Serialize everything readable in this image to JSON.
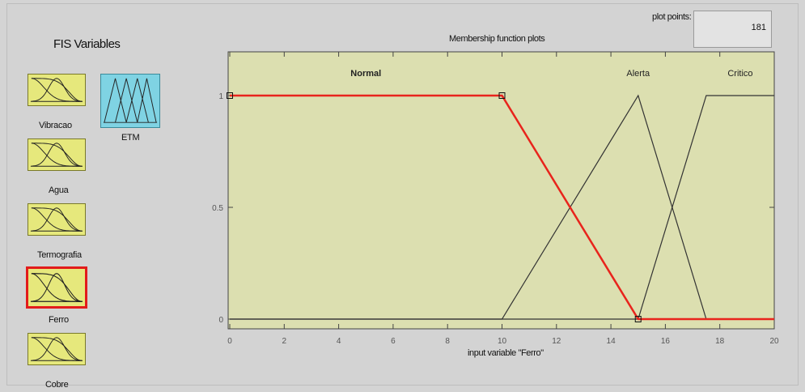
{
  "fis_panel": {
    "title": "FIS Variables",
    "inputs": [
      {
        "label": "Vibracao",
        "selected": false
      },
      {
        "label": "Agua",
        "selected": false
      },
      {
        "label": "Termografia",
        "selected": false
      },
      {
        "label": "Ferro",
        "selected": true
      },
      {
        "label": "Cobre",
        "selected": false
      }
    ],
    "output": {
      "label": "ETM"
    }
  },
  "plot_points": {
    "label": "plot points:",
    "value": "181"
  },
  "plot": {
    "title": "Membership function plots",
    "xlabel": "input variable \"Ferro\"",
    "x_range": [
      0,
      20
    ],
    "y_range": [
      0,
      1
    ],
    "x_ticks": [
      "0",
      "2",
      "4",
      "6",
      "8",
      "10",
      "12",
      "14",
      "16",
      "18",
      "20"
    ],
    "y_ticks": [
      "0",
      "0.5",
      "1"
    ],
    "membership_functions": [
      {
        "name": "Normal",
        "type": "trapmf",
        "points": [
          [
            0,
            1
          ],
          [
            10,
            1
          ],
          [
            15,
            0
          ],
          [
            20,
            0
          ]
        ],
        "selected": true,
        "color": "#e8241c"
      },
      {
        "name": "Alerta",
        "type": "trimf",
        "points": [
          [
            0,
            0
          ],
          [
            10,
            0
          ],
          [
            15,
            1
          ],
          [
            17.5,
            0
          ],
          [
            20,
            0
          ]
        ],
        "selected": false,
        "color": "#333333"
      },
      {
        "name": "Critico",
        "type": "trapmf",
        "points": [
          [
            0,
            0
          ],
          [
            15,
            0
          ],
          [
            17.5,
            1
          ],
          [
            20,
            1
          ]
        ],
        "selected": false,
        "color": "#333333"
      }
    ]
  },
  "colors": {
    "plot_bg": "#dcdfb0",
    "input_bg": "#e6e87c",
    "output_bg": "#7fd3e3",
    "selection": "#e21b1b"
  }
}
